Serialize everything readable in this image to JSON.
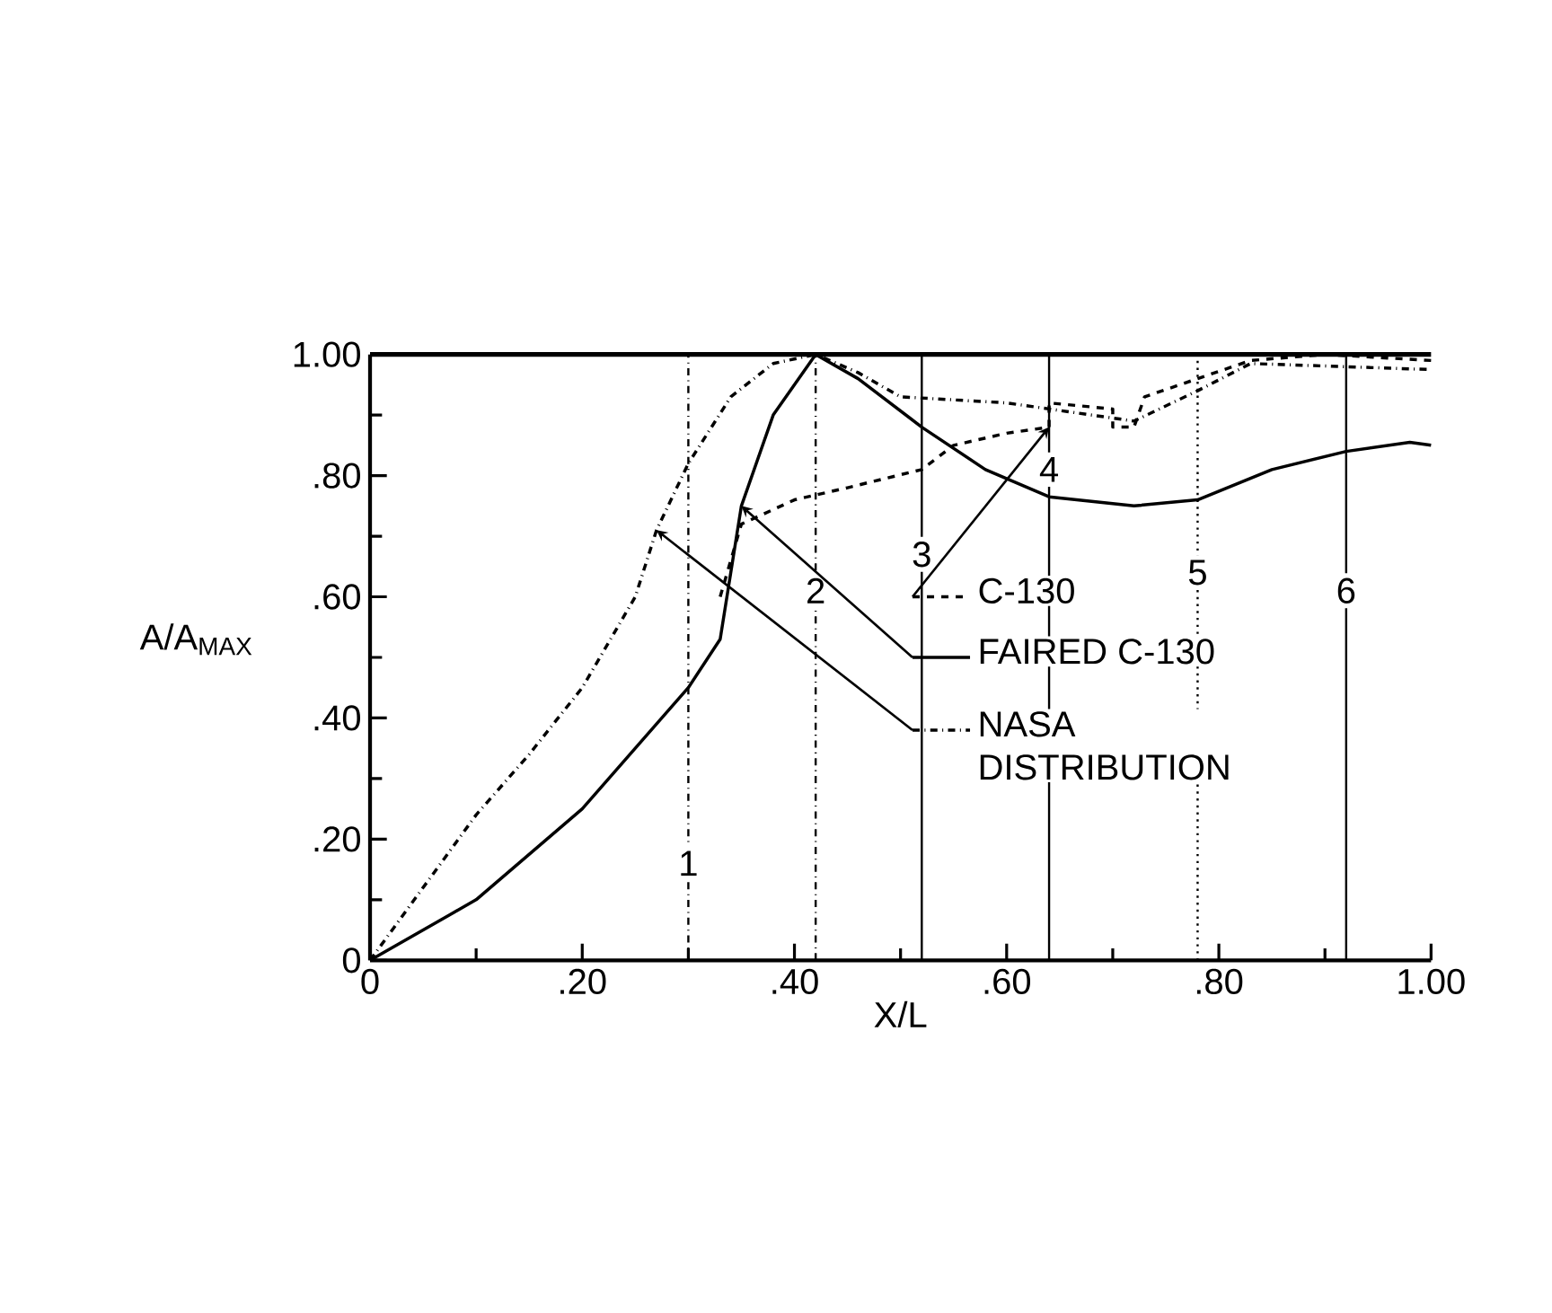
{
  "chart_data": {
    "type": "line",
    "xlabel": "X/L",
    "ylabel": "A/A$_{MAX}$",
    "xlim": [
      0,
      1.0
    ],
    "ylim": [
      0,
      1.0
    ],
    "xticks": [
      {
        "value": 0,
        "label": "0"
      },
      {
        "value": 0.2,
        "label": ".20"
      },
      {
        "value": 0.4,
        "label": ".40"
      },
      {
        "value": 0.6,
        "label": ".60"
      },
      {
        "value": 0.8,
        "label": ".80"
      },
      {
        "value": 1.0,
        "label": "1.00"
      }
    ],
    "yticks": [
      {
        "value": 0,
        "label": "0"
      },
      {
        "value": 0.2,
        "label": ".20"
      },
      {
        "value": 0.4,
        "label": ".40"
      },
      {
        "value": 0.6,
        "label": ".60"
      },
      {
        "value": 0.8,
        "label": ".80"
      },
      {
        "value": 1.0,
        "label": "1.00"
      }
    ],
    "grid": false,
    "legend": "bottom right",
    "marker": "none",
    "series": [
      {
        "name": "C-130",
        "color": "#000000",
        "line_style": "dashed",
        "x": [
          0.33,
          0.35,
          0.4,
          0.45,
          0.52,
          0.55,
          0.6,
          0.64,
          0.64,
          0.7,
          0.7,
          0.72,
          0.73,
          0.78,
          0.83,
          0.9,
          1.0
        ],
        "values": [
          0.6,
          0.72,
          0.76,
          0.78,
          0.81,
          0.85,
          0.87,
          0.88,
          0.92,
          0.91,
          0.88,
          0.88,
          0.93,
          0.96,
          0.99,
          1.0,
          0.99
        ]
      },
      {
        "name": "FAIRED C-130",
        "color": "#000000",
        "line_style": "solid",
        "x": [
          0,
          0.1,
          0.2,
          0.3,
          0.33,
          0.35,
          0.38,
          0.42,
          0.46,
          0.52,
          0.58,
          0.64,
          0.72,
          0.78,
          0.85,
          0.92,
          0.98,
          1.0
        ],
        "values": [
          0,
          0.1,
          0.25,
          0.45,
          0.53,
          0.75,
          0.9,
          1.0,
          0.96,
          0.88,
          0.81,
          0.765,
          0.75,
          0.76,
          0.81,
          0.84,
          0.855,
          0.85
        ]
      },
      {
        "name": "NASA DISTRIBUTION",
        "color": "#000000",
        "line_style": "dashdot",
        "x": [
          0,
          0.05,
          0.1,
          0.15,
          0.2,
          0.25,
          0.27,
          0.3,
          0.34,
          0.38,
          0.42,
          0.46,
          0.5,
          0.6,
          0.64,
          0.72,
          0.78,
          0.83,
          1.0
        ],
        "values": [
          0,
          0.12,
          0.24,
          0.34,
          0.45,
          0.6,
          0.71,
          0.82,
          0.93,
          0.985,
          1.0,
          0.97,
          0.93,
          0.92,
          0.91,
          0.89,
          0.94,
          0.985,
          0.975
        ]
      }
    ],
    "ref_lines": [
      {
        "axis": "x",
        "value": 0.3,
        "line_style": "dashdot"
      },
      {
        "axis": "x",
        "value": 0.42,
        "line_style": "dashdot"
      },
      {
        "axis": "x",
        "value": 0.52,
        "line_style": "solid"
      },
      {
        "axis": "x",
        "value": 0.64,
        "line_style": "solid"
      },
      {
        "axis": "x",
        "value": 0.78,
        "line_style": "dotted"
      },
      {
        "axis": "x",
        "value": 0.92,
        "line_style": "solid"
      }
    ],
    "annotations": [
      {
        "text": "1",
        "x": 0.3,
        "y": 0.16
      },
      {
        "text": "2",
        "x": 0.42,
        "y": 0.61
      },
      {
        "text": "3",
        "x": 0.52,
        "y": 0.67
      },
      {
        "text": "4",
        "x": 0.64,
        "y": 0.81
      },
      {
        "text": "5",
        "x": 0.78,
        "y": 0.64
      },
      {
        "text": "6",
        "x": 0.92,
        "y": 0.61
      }
    ]
  }
}
